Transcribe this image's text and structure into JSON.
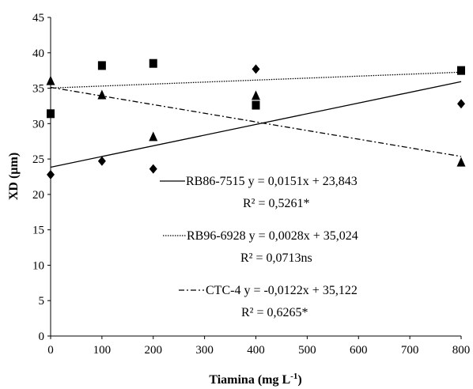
{
  "chart_data": {
    "type": "scatter",
    "xlabel": "Tiamina (mg L",
    "xlabel_sup": "-1",
    "xlabel_close": ")",
    "ylabel": "XD (µm)",
    "xlim": [
      0,
      800
    ],
    "ylim": [
      0,
      45
    ],
    "xticks": [
      0,
      100,
      200,
      300,
      400,
      500,
      600,
      700,
      800
    ],
    "yticks": [
      0,
      5,
      10,
      15,
      20,
      25,
      30,
      35,
      40,
      45
    ],
    "grid": false,
    "series": [
      {
        "name": "RB86-7515",
        "marker": "diamond",
        "line_style": "solid",
        "x": [
          0,
          100,
          200,
          400,
          800
        ],
        "y": [
          22.8,
          24.7,
          23.6,
          37.7,
          32.8
        ],
        "fit": {
          "slope": 0.0151,
          "intercept": 23.843
        }
      },
      {
        "name": "RB96-6928",
        "marker": "square",
        "line_style": "dotted",
        "x": [
          0,
          100,
          200,
          400,
          800
        ],
        "y": [
          31.4,
          38.2,
          38.5,
          32.6,
          37.5
        ],
        "fit": {
          "slope": 0.0028,
          "intercept": 35.024
        }
      },
      {
        "name": "CTC-4",
        "marker": "triangle",
        "line_style": "dashdot",
        "x": [
          0,
          100,
          200,
          400,
          800
        ],
        "y": [
          36.0,
          34.0,
          28.1,
          33.9,
          24.5
        ],
        "fit": {
          "slope": -0.0122,
          "intercept": 35.122
        }
      }
    ],
    "annotations": [
      {
        "series": "RB86-7515",
        "equation": "RB86-7515 y = 0,0151x + 23,843",
        "r2": "R² = 0,5261*"
      },
      {
        "series": "RB96-6928",
        "equation": "RB96-6928 y = 0,0028x + 35,024",
        "r2": "R² = 0,0713ns"
      },
      {
        "series": "CTC-4",
        "equation": "CTC-4 y = -0,0122x + 35,122",
        "r2": "R² = 0,6265*"
      }
    ]
  }
}
